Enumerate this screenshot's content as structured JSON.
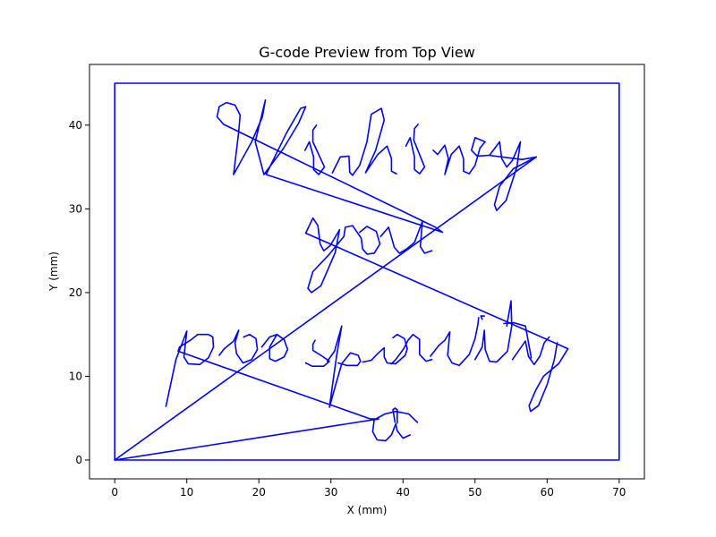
{
  "chart_data": {
    "type": "line",
    "title": "G-code Preview from Top View",
    "xlabel": "X (mm)",
    "ylabel": "Y (mm)",
    "xlim": [
      -3.5,
      73.5
    ],
    "ylim": [
      -2.25,
      47.25
    ],
    "xticks": [
      0,
      10,
      20,
      30,
      40,
      50,
      60,
      70
    ],
    "yticks": [
      0,
      10,
      20,
      30,
      40
    ],
    "grid": false,
    "color": "#0000ff",
    "series": [
      {
        "name": "",
        "segments": [
          [
            [
              0,
              0
            ],
            [
              0,
              45
            ],
            [
              70,
              45
            ],
            [
              70,
              0
            ],
            [
              0,
              0
            ]
          ],
          [
            [
              0,
              0
            ],
            [
              58.5,
              36.2
            ]
          ],
          [
            [
              0,
              0
            ],
            [
              36.6,
              4.9
            ]
          ],
          [
            [
              15.1,
              40.1
            ],
            [
              14.2,
              41.0
            ],
            [
              14.5,
              42.2
            ],
            [
              15.5,
              42.7
            ],
            [
              16.7,
              42.4
            ],
            [
              17.4,
              41.2
            ],
            [
              17.2,
              39.2
            ],
            [
              16.5,
              34.1
            ],
            [
              19.0,
              38.0
            ],
            [
              20.5,
              41.0
            ],
            [
              20.9,
              43.0
            ],
            [
              19.5,
              38.0
            ],
            [
              20.7,
              34.1
            ],
            [
              23.4,
              37.2
            ],
            [
              25.5,
              40.2
            ],
            [
              26.5,
              42.2
            ],
            [
              25.8,
              42.0
            ],
            [
              23.8,
              39.0
            ],
            [
              21.0,
              34.1
            ],
            [
              45.5,
              27.2
            ],
            [
              44.5,
              27.8
            ],
            [
              15.1,
              40.1
            ]
          ],
          [
            [
              26.4,
              37.0
            ],
            [
              27.0,
              38.0
            ],
            [
              27.6,
              36.2
            ],
            [
              27.6,
              34.7
            ],
            [
              28.3,
              34.1
            ],
            [
              29.1,
              35.0
            ],
            [
              27.5,
              38.0
            ],
            [
              27.5,
              39.4
            ],
            [
              28.0,
              40.0
            ]
          ],
          [
            [
              30.2,
              34.3
            ],
            [
              31.3,
              36.2
            ],
            [
              32.5,
              36.3
            ],
            [
              32.6,
              34.4
            ],
            [
              33.0,
              34.0
            ],
            [
              34.0,
              35.2
            ],
            [
              35.0,
              38.0
            ],
            [
              35.6,
              41.3
            ],
            [
              37.0,
              42.0
            ],
            [
              37.4,
              40.6
            ],
            [
              36.2,
              37.0
            ],
            [
              34.8,
              34.3
            ],
            [
              36.5,
              36.5
            ],
            [
              37.8,
              37.5
            ],
            [
              38.4,
              36.0
            ],
            [
              38.4,
              34.5
            ],
            [
              39.1,
              34.2
            ]
          ],
          [
            [
              40.4,
              37.5
            ],
            [
              41.0,
              38.5
            ],
            [
              41.6,
              36.2
            ],
            [
              41.6,
              34.7
            ],
            [
              42.3,
              34.2
            ],
            [
              43.0,
              35.0
            ],
            [
              41.5,
              38.2
            ],
            [
              41.6,
              39.6
            ],
            [
              42.1,
              40.1
            ]
          ],
          [
            [
              44.2,
              37.0
            ],
            [
              44.8,
              36.5
            ],
            [
              45.8,
              37.6
            ],
            [
              46.3,
              36.0
            ],
            [
              45.8,
              34.1
            ],
            [
              46.7,
              36.5
            ],
            [
              47.8,
              37.5
            ],
            [
              48.4,
              36.0
            ],
            [
              48.4,
              34.5
            ],
            [
              49.2,
              34.2
            ],
            [
              50.0,
              35.2
            ],
            [
              50.7,
              37.3
            ],
            [
              51.4,
              38.0
            ],
            [
              50.0,
              38.5
            ],
            [
              49.5,
              37.0
            ],
            [
              50.3,
              36.3
            ],
            [
              52.0,
              36.4
            ],
            [
              53.4,
              38.0
            ],
            [
              53.7,
              36.0
            ],
            [
              54.4,
              35.0
            ],
            [
              55.2,
              35.8
            ],
            [
              56.3,
              38.0
            ],
            [
              55.8,
              35.0
            ],
            [
              54.3,
              31.0
            ],
            [
              53.0,
              29.8
            ],
            [
              52.7,
              30.5
            ],
            [
              53.4,
              32.7
            ],
            [
              55.3,
              34.8
            ],
            [
              58.5,
              36.2
            ],
            [
              56.5,
              35.9
            ],
            [
              51.9,
              36.4
            ]
          ],
          [
            [
              26.5,
              27.1
            ],
            [
              27.5,
              28.9
            ],
            [
              28.2,
              28.0
            ],
            [
              28.5,
              25.8
            ],
            [
              29.0,
              25.0
            ],
            [
              29.9,
              25.6
            ],
            [
              31.2,
              27.5
            ],
            [
              30.6,
              24.8
            ],
            [
              28.6,
              20.8
            ],
            [
              27.3,
              20.0
            ],
            [
              26.8,
              20.5
            ],
            [
              27.5,
              22.5
            ],
            [
              29.8,
              24.6
            ],
            [
              31.8,
              26.7
            ],
            [
              32.0,
              27.8
            ],
            [
              33.0,
              28.0
            ],
            [
              34.2,
              26.5
            ],
            [
              34.4,
              25.2
            ],
            [
              35.0,
              24.6
            ],
            [
              36.0,
              24.7
            ],
            [
              36.8,
              25.8
            ],
            [
              36.3,
              27.3
            ],
            [
              35.0,
              27.9
            ],
            [
              34.0,
              27.2
            ]
          ],
          [
            [
              36.9,
              26.7
            ],
            [
              38.0,
              27.8
            ],
            [
              38.8,
              25.4
            ],
            [
              39.5,
              24.7
            ],
            [
              40.5,
              25.2
            ],
            [
              41.6,
              26.0
            ],
            [
              42.7,
              28.5
            ],
            [
              42.4,
              25.5
            ],
            [
              43.0,
              24.7
            ],
            [
              44.0,
              25.0
            ]
          ],
          [
            [
              26.5,
              27.1
            ],
            [
              62.9,
              13.3
            ],
            [
              61.6,
              11.5
            ],
            [
              59.5,
              10.0
            ],
            [
              58.4,
              8.3
            ],
            [
              57.5,
              6.5
            ],
            [
              57.7,
              5.8
            ],
            [
              58.8,
              6.5
            ],
            [
              60.0,
              9.0
            ],
            [
              61.0,
              12.0
            ],
            [
              61.4,
              14.0
            ]
          ],
          [
            [
              7.1,
              6.4
            ],
            [
              8.5,
              12.0
            ],
            [
              10.0,
              15.4
            ],
            [
              9.6,
              12.3
            ],
            [
              10.2,
              11.5
            ],
            [
              11.8,
              11.4
            ],
            [
              13.0,
              12.2
            ],
            [
              13.7,
              13.5
            ],
            [
              13.6,
              14.7
            ],
            [
              13.0,
              15.0
            ],
            [
              11.5,
              15.0
            ],
            [
              10.5,
              14.3
            ],
            [
              9.0,
              13.5
            ],
            [
              8.8,
              13.0
            ],
            [
              35.5,
              4.9
            ],
            [
              36.6,
              4.9
            ]
          ],
          [
            [
              14.5,
              12.5
            ],
            [
              15.2,
              13.3
            ],
            [
              16.5,
              14.2
            ],
            [
              17.2,
              15.5
            ],
            [
              16.7,
              14.0
            ],
            [
              16.9,
              12.7
            ],
            [
              17.8,
              11.6
            ],
            [
              19.0,
              12.0
            ],
            [
              19.8,
              13.2
            ],
            [
              19.6,
              14.5
            ],
            [
              18.7,
              15.0
            ],
            [
              17.9,
              14.7
            ]
          ],
          [
            [
              20.4,
              13.5
            ],
            [
              21.5,
              14.7
            ],
            [
              22.5,
              15.0
            ],
            [
              23.5,
              14.4
            ],
            [
              24.0,
              13.2
            ],
            [
              23.5,
              12.3
            ],
            [
              22.3,
              11.8
            ],
            [
              21.5,
              12.1
            ],
            [
              21.5,
              13.5
            ],
            [
              22.5,
              15.0
            ],
            [
              23.3,
              14.5
            ]
          ],
          [
            [
              27.8,
              14.3
            ],
            [
              27.5,
              13.8
            ],
            [
              27.5,
              13.1
            ],
            [
              28.8,
              12.4
            ],
            [
              29.8,
              11.8
            ],
            [
              29.0,
              11.2
            ],
            [
              27.4,
              11.2
            ],
            [
              26.5,
              11.6
            ]
          ],
          [
            [
              29.5,
              11.8
            ],
            [
              30.5,
              13.0
            ],
            [
              31.5,
              16.0
            ],
            [
              30.8,
              12.5
            ],
            [
              30.3,
              9.5
            ],
            [
              29.8,
              6.3
            ],
            [
              30.5,
              8.5
            ],
            [
              31.5,
              11.5
            ],
            [
              32.7,
              12.8
            ],
            [
              33.8,
              12.5
            ],
            [
              34.1,
              11.8
            ],
            [
              33.7,
              11.3
            ],
            [
              32.2,
              11.3
            ],
            [
              31.0,
              11.6
            ]
          ],
          [
            [
              34.4,
              11.7
            ],
            [
              35.6,
              11.9
            ],
            [
              36.6,
              12.8
            ],
            [
              37.4,
              13.4
            ],
            [
              37.4,
              12.3
            ],
            [
              37.8,
              11.6
            ],
            [
              39.0,
              11.5
            ],
            [
              40.3,
              12.5
            ],
            [
              40.6,
              13.3
            ],
            [
              40.2,
              14.5
            ],
            [
              39.2,
              15.0
            ],
            [
              38.6,
              14.6
            ]
          ],
          [
            [
              38.4,
              11.5
            ],
            [
              39.0,
              12.0
            ],
            [
              40.1,
              13.3
            ],
            [
              40.7,
              14.3
            ],
            [
              41.4,
              15.0
            ],
            [
              42.3,
              14.4
            ],
            [
              42.3,
              12.6
            ],
            [
              43.2,
              11.8
            ],
            [
              44.0,
              12.0
            ]
          ],
          [
            [
              43.8,
              12.4
            ],
            [
              45.0,
              13.7
            ],
            [
              45.8,
              14.3
            ],
            [
              46.5,
              15.3
            ],
            [
              46.2,
              12.5
            ],
            [
              46.8,
              11.6
            ],
            [
              47.8,
              11.3
            ],
            [
              49.2,
              12.6
            ],
            [
              50.0,
              14.5
            ],
            [
              50.4,
              16.2
            ],
            [
              50.5,
              17.0
            ]
          ],
          [
            [
              50.0,
              12.0
            ],
            [
              51.0,
              13.5
            ],
            [
              51.3,
              15.5
            ],
            [
              51.4,
              13.2
            ],
            [
              52.0,
              11.8
            ],
            [
              53.0,
              11.7
            ],
            [
              54.5,
              13.0
            ],
            [
              55.1,
              16.0
            ],
            [
              55.0,
              19.0
            ],
            [
              54.4,
              16.0
            ]
          ],
          [
            [
              55.2,
              12.0
            ],
            [
              56.0,
              13.0
            ],
            [
              57.0,
              14.2
            ],
            [
              57.4,
              12.4
            ],
            [
              58.2,
              11.4
            ],
            [
              59.0,
              12.4
            ],
            [
              59.6,
              14.0
            ],
            [
              60.3,
              14.7
            ]
          ],
          [
            [
              54.0,
              16.3
            ],
            [
              55.4,
              16.4
            ],
            [
              57.0,
              16.0
            ],
            [
              57.8,
              12.2
            ]
          ],
          [
            [
              51.0,
              16.8
            ],
            [
              50.8,
              17.2
            ],
            [
              51.3,
              17.2
            ]
          ],
          [
            [
              42.0,
              4.5
            ],
            [
              40.8,
              5.5
            ],
            [
              39.0,
              5.8
            ],
            [
              37.5,
              5.5
            ],
            [
              36.0,
              4.8
            ],
            [
              35.8,
              3.4
            ],
            [
              36.4,
              2.4
            ],
            [
              37.6,
              2.3
            ],
            [
              38.4,
              3.0
            ],
            [
              39.0,
              4.3
            ],
            [
              39.2,
              3.5
            ],
            [
              40.0,
              2.6
            ],
            [
              41.0,
              3.0
            ]
          ],
          [
            [
              39.2,
              4.4
            ],
            [
              39.2,
              6.0
            ],
            [
              38.9,
              6.2
            ],
            [
              38.6,
              6.0
            ],
            [
              38.9,
              4.5
            ]
          ]
        ]
      }
    ]
  }
}
